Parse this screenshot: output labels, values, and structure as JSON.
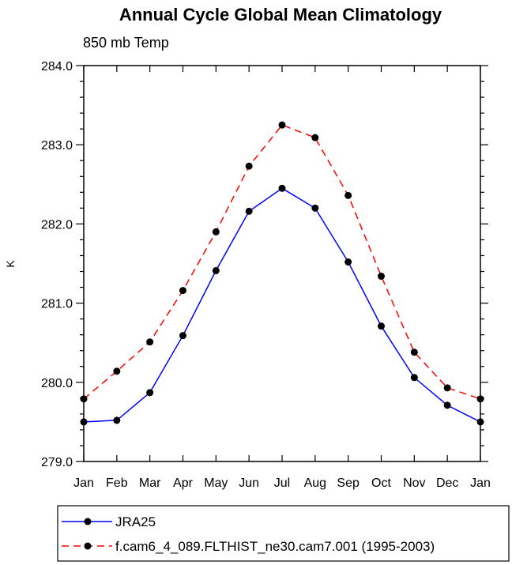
{
  "chart_data": {
    "type": "line",
    "title": "Annual Cycle Global Mean Climatology",
    "subtitle": "850 mb Temp",
    "xlabel": "",
    "ylabel": "K",
    "categories": [
      "Jan",
      "Feb",
      "Mar",
      "Apr",
      "May",
      "Jun",
      "Jul",
      "Aug",
      "Sep",
      "Oct",
      "Nov",
      "Dec",
      "Jan"
    ],
    "ylim": [
      279.0,
      284.0
    ],
    "yticks": [
      "279.0",
      "280.0",
      "281.0",
      "282.0",
      "283.0",
      "284.0"
    ],
    "grid": false,
    "legend": "below",
    "series": [
      {
        "name": "JRA25",
        "color": "#0000ff",
        "dash": "solid",
        "values": [
          279.5,
          279.52,
          279.87,
          280.59,
          281.41,
          282.16,
          282.45,
          282.2,
          281.52,
          280.71,
          280.06,
          279.71,
          279.5
        ]
      },
      {
        "name": "f.cam6_4_089.FLTHIST_ne30.cam7.001 (1995-2003)",
        "color": "#ff0000",
        "dash": "dashed",
        "values": [
          279.79,
          280.14,
          280.51,
          281.16,
          281.9,
          282.73,
          283.25,
          283.09,
          282.36,
          281.34,
          280.38,
          279.93,
          279.79
        ]
      }
    ]
  }
}
